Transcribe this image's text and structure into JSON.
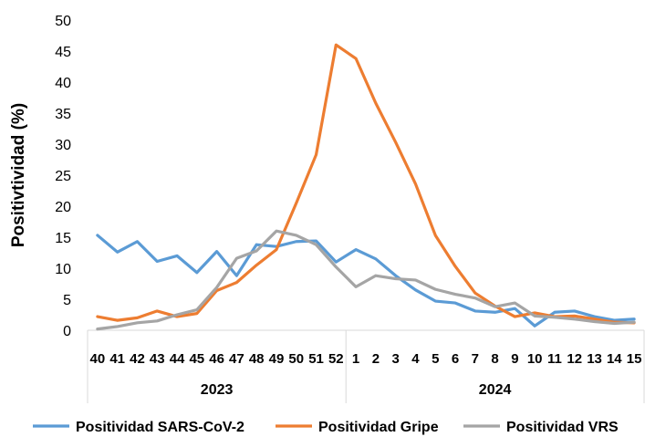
{
  "chart_data": {
    "type": "line",
    "ylabel": "Positivtividad (%)",
    "ylim": [
      0,
      50
    ],
    "yticks": [
      0,
      5,
      10,
      15,
      20,
      25,
      30,
      35,
      40,
      45,
      50
    ],
    "grid": false,
    "legend_position": "bottom",
    "categories": [
      "40",
      "41",
      "42",
      "43",
      "44",
      "45",
      "46",
      "47",
      "48",
      "49",
      "50",
      "51",
      "52",
      "1",
      "2",
      "3",
      "4",
      "5",
      "6",
      "7",
      "8",
      "9",
      "10",
      "11",
      "12",
      "13",
      "14",
      "15"
    ],
    "groups": [
      {
        "label": "2023",
        "count": 13
      },
      {
        "label": "2024",
        "count": 15
      }
    ],
    "series": [
      {
        "name": "Positividad SARS-CoV-2",
        "color": "#5B9BD5",
        "values": [
          15.3,
          12.6,
          14.3,
          11.1,
          12.0,
          9.3,
          12.7,
          8.8,
          13.8,
          13.5,
          14.3,
          14.4,
          11.0,
          13.0,
          11.5,
          8.8,
          6.5,
          4.7,
          4.4,
          3.1,
          2.9,
          3.5,
          0.7,
          2.9,
          3.1,
          2.2,
          1.6,
          1.8
        ]
      },
      {
        "name": "Positividad Gripe",
        "color": "#ED7D31",
        "values": [
          2.2,
          1.6,
          2.0,
          3.1,
          2.2,
          2.7,
          6.4,
          7.7,
          10.5,
          13.0,
          20.5,
          28.3,
          46.0,
          43.8,
          36.6,
          30.3,
          23.6,
          15.3,
          10.3,
          6.0,
          3.9,
          2.2,
          2.8,
          2.2,
          2.3,
          1.8,
          1.3,
          1.2
        ]
      },
      {
        "name": "Positividad VRS",
        "color": "#A5A5A5",
        "values": [
          0.2,
          0.6,
          1.2,
          1.5,
          2.5,
          3.3,
          6.9,
          11.6,
          12.8,
          16.0,
          15.3,
          13.8,
          10.2,
          7.0,
          8.8,
          8.3,
          8.1,
          6.6,
          5.8,
          5.2,
          3.8,
          4.4,
          2.3,
          2.1,
          1.8,
          1.4,
          1.1,
          1.3
        ]
      }
    ]
  }
}
